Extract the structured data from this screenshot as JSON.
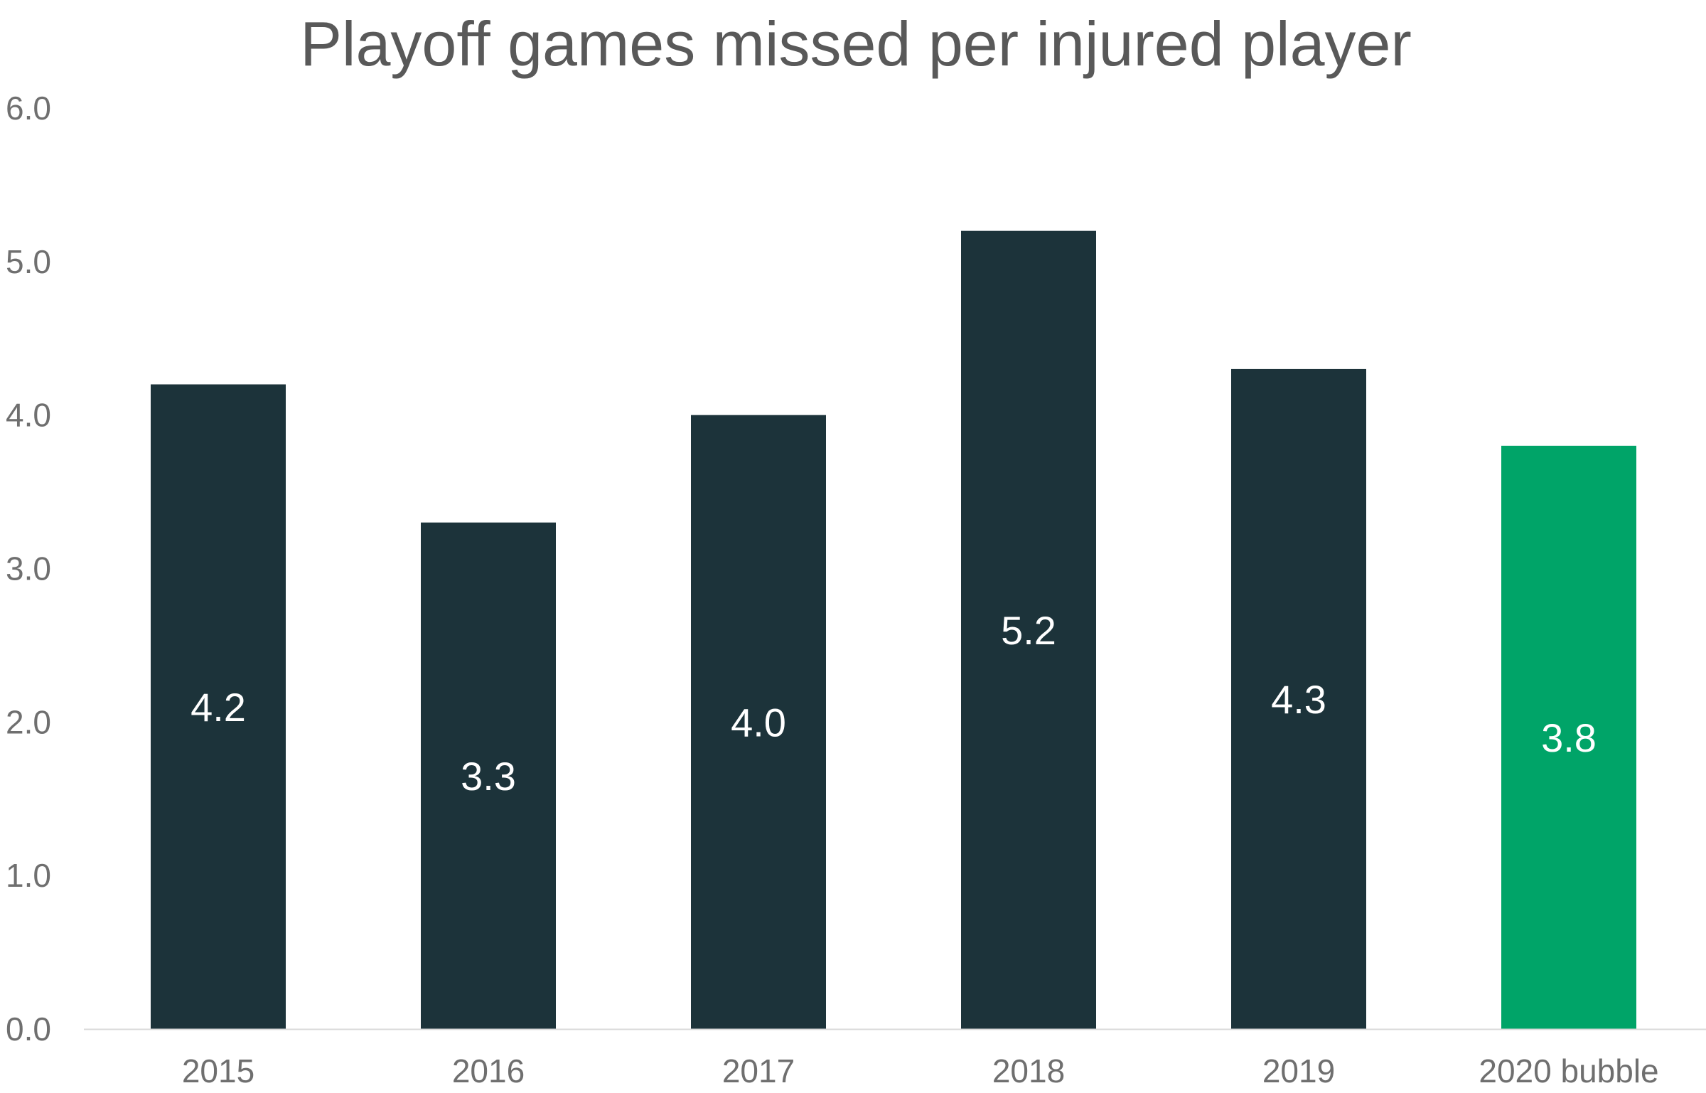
{
  "chart_data": {
    "type": "bar",
    "title": "Playoff games missed per injured player",
    "xlabel": "",
    "ylabel": "",
    "categories": [
      "2015",
      "2016",
      "2017",
      "2018",
      "2019",
      "2020 bubble"
    ],
    "values": [
      4.2,
      3.3,
      4.0,
      5.2,
      4.3,
      3.8
    ],
    "value_labels": [
      "4.2",
      "3.3",
      "4.0",
      "5.2",
      "4.3",
      "3.8"
    ],
    "ylim": [
      0,
      6
    ],
    "yticks": [
      0,
      1,
      2,
      3,
      4,
      5,
      6
    ],
    "ytick_labels": [
      "0.0",
      "1.0",
      "2.0",
      "3.0",
      "4.0",
      "5.0",
      "6.0"
    ],
    "grid": false,
    "legend": "none",
    "colors": {
      "bar": "#1c333a",
      "highlight": "#00a468",
      "highlight_category": "2020 bubble",
      "axis_line": "#d9d9d9"
    }
  }
}
